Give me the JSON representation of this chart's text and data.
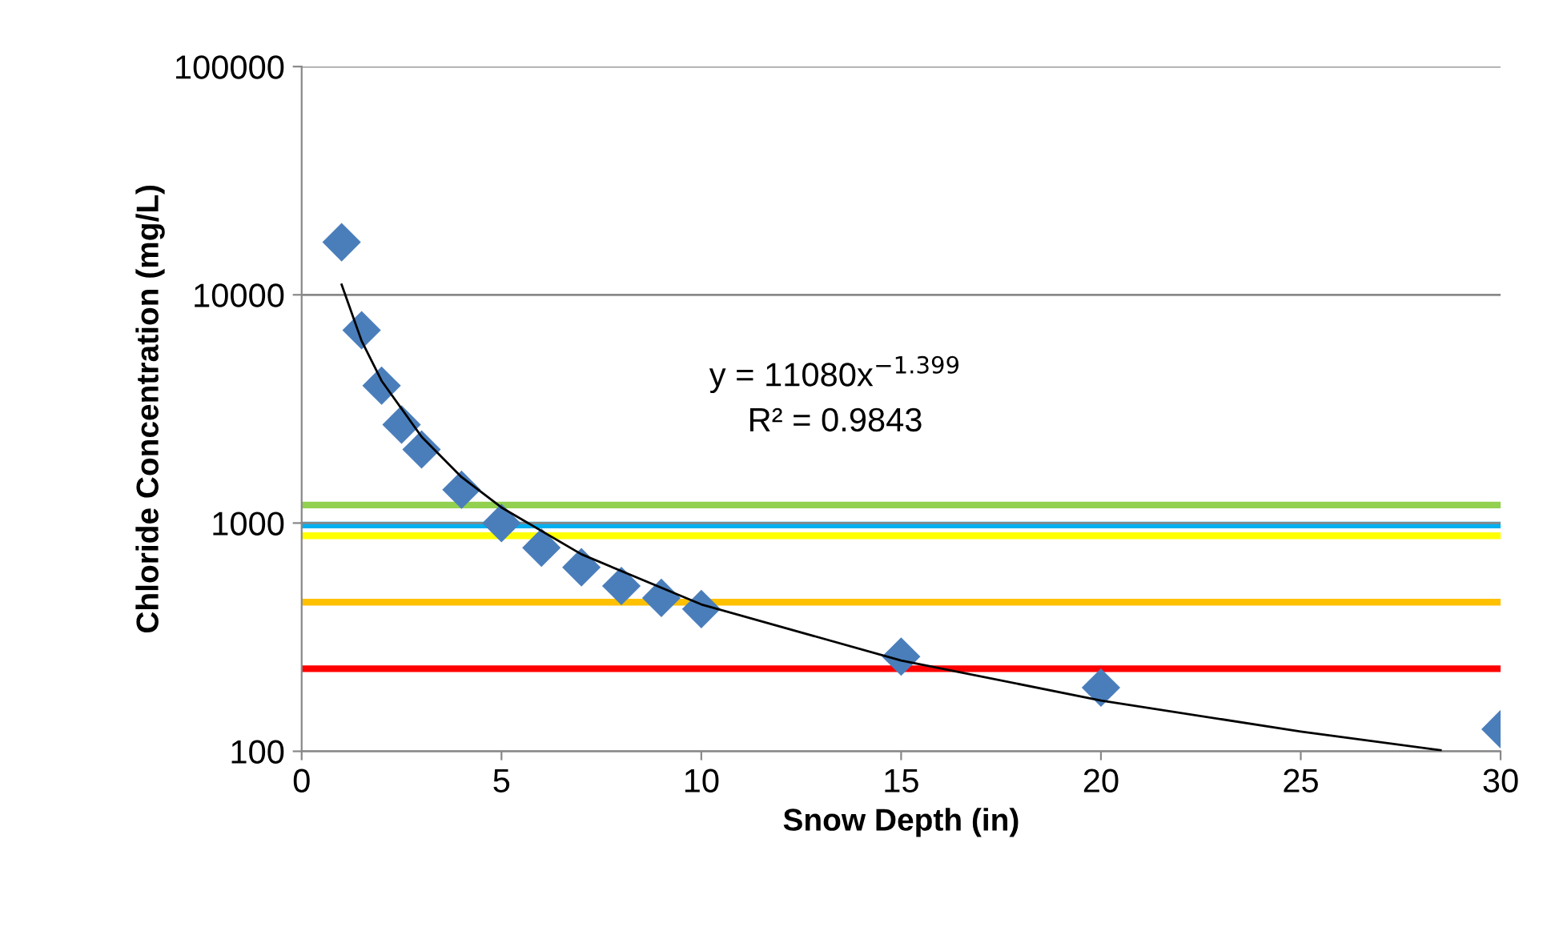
{
  "chart_data": {
    "type": "scatter",
    "xlabel": "Snow Depth (in)",
    "ylabel": "Chloride Concentration (mg/L)",
    "log": "y",
    "grid": "y",
    "marker": "diamond",
    "xlim": [
      0,
      30
    ],
    "xticks": [
      0,
      5,
      10,
      15,
      20,
      25,
      30
    ],
    "ylim": [
      100,
      100000
    ],
    "yticks": [
      100,
      1000,
      10000,
      100000
    ],
    "series": [
      {
        "color": "#4a7ebb",
        "x": [
          1,
          1.5,
          2,
          2.5,
          3,
          4,
          5,
          6,
          7,
          8,
          9,
          10,
          15,
          20,
          30
        ],
        "values": [
          17000,
          7000,
          4000,
          2700,
          2100,
          1400,
          1000,
          780,
          640,
          530,
          470,
          420,
          260,
          190,
          125
        ]
      },
      {
        "type": "line",
        "color": "#000000",
        "marker": "none",
        "x": [
          1,
          1.5,
          2,
          3,
          4,
          5,
          7,
          10,
          15,
          20,
          25,
          28.5
        ],
        "values": [
          11080,
          6280,
          4200,
          2390,
          1590,
          1170,
          730,
          440,
          250,
          167,
          122,
          101
        ]
      }
    ],
    "ref_lines": [
      {
        "axis": "y",
        "value": 1200,
        "color": "#92d050"
      },
      {
        "axis": "y",
        "value": 980,
        "color": "#00b0f0"
      },
      {
        "axis": "y",
        "value": 880,
        "color": "#ffff00"
      },
      {
        "axis": "y",
        "value": 450,
        "color": "#ffc000"
      },
      {
        "axis": "y",
        "value": 230,
        "color": "#ff0000"
      }
    ],
    "annotations": [
      "y = 11080x$^{−1.399}$",
      "R² = 0.9843"
    ]
  }
}
